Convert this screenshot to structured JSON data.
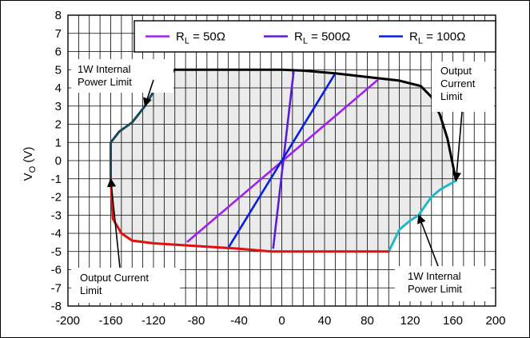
{
  "chart_data": {
    "type": "line",
    "ylabel": "V",
    "ylabel_sub": "O",
    "ylabel_suffix": " (V)",
    "xlim": [
      -200,
      200
    ],
    "ylim": [
      -8,
      8
    ],
    "x_ticks": [
      -200,
      -160,
      -120,
      -80,
      -40,
      0,
      40,
      80,
      120,
      160,
      200
    ],
    "y_ticks": [
      8,
      7,
      6,
      5,
      4,
      3,
      2,
      1,
      0,
      -1,
      -2,
      -3,
      -4,
      -5,
      -6,
      -7,
      -8
    ],
    "x_minor_step": 10,
    "y_minor_step": 1,
    "grid": true,
    "legend_position": "top-right",
    "legend": [
      {
        "label": "R",
        "sub": "L",
        "value": " = 50Ω",
        "color": "#a020f0"
      },
      {
        "label": "R",
        "sub": "L",
        "value": " = 500Ω",
        "color": "#5a1ed8"
      },
      {
        "label": "R",
        "sub": "L",
        "value": " = 100Ω",
        "color": "#0a1ee0"
      }
    ],
    "safe_area_color": "#ebebeb",
    "boundary": [
      {
        "color": "#1a4a5c",
        "points": [
          [
            -160,
            -1
          ],
          [
            -160,
            1
          ],
          [
            -152,
            1.6
          ],
          [
            -140,
            2.1
          ],
          [
            -128,
            3
          ],
          [
            -120,
            3.8
          ],
          [
            -100,
            5
          ]
        ]
      },
      {
        "color": "#000000",
        "points": [
          [
            -100,
            5
          ],
          [
            0,
            5
          ],
          [
            20,
            4.95
          ],
          [
            50,
            4.8
          ],
          [
            80,
            4.6
          ],
          [
            110,
            4.4
          ],
          [
            130,
            4.1
          ],
          [
            140,
            3.5
          ],
          [
            148,
            2.5
          ],
          [
            155,
            1.2
          ],
          [
            163,
            -1.1
          ]
        ]
      },
      {
        "color": "#20b8c8",
        "points": [
          [
            163,
            -1.1
          ],
          [
            148,
            -1.6
          ],
          [
            140,
            -2
          ],
          [
            135,
            -2.4
          ],
          [
            128,
            -3
          ],
          [
            120,
            -3.3
          ],
          [
            110,
            -3.8
          ],
          [
            100,
            -5
          ]
        ]
      },
      {
        "color": "#e01010",
        "points": [
          [
            100,
            -5
          ],
          [
            -10,
            -5
          ],
          [
            -40,
            -4.85
          ],
          [
            -80,
            -4.7
          ],
          [
            -120,
            -4.55
          ],
          [
            -140,
            -4.4
          ],
          [
            -150,
            -4
          ],
          [
            -158,
            -3.2
          ],
          [
            -160,
            -1
          ]
        ]
      }
    ],
    "series": [
      {
        "color": "#a020f0",
        "points": [
          [
            -88,
            -4.45
          ],
          [
            89,
            4.4
          ]
        ]
      },
      {
        "color": "#5a1ed8",
        "points": [
          [
            -8,
            -4.8
          ],
          [
            11,
            4.85
          ]
        ]
      },
      {
        "color": "#0a1ee0",
        "points": [
          [
            -50,
            -4.8
          ],
          [
            50,
            4.8
          ]
        ]
      }
    ],
    "annotations": [
      {
        "lines": [
          "1W Internal",
          "Power Limit"
        ],
        "arrow_to": [
          -128,
          3
        ]
      },
      {
        "lines": [
          "Output",
          "Current",
          "Limit"
        ],
        "arrow_to": [
          163,
          -1.1
        ]
      },
      {
        "lines": [
          "Output Current",
          "Limit"
        ],
        "arrow_to": [
          -160,
          -1
        ]
      },
      {
        "lines": [
          "1W Internal",
          "Power Limit"
        ],
        "arrow_to": [
          128,
          -3
        ]
      }
    ]
  }
}
